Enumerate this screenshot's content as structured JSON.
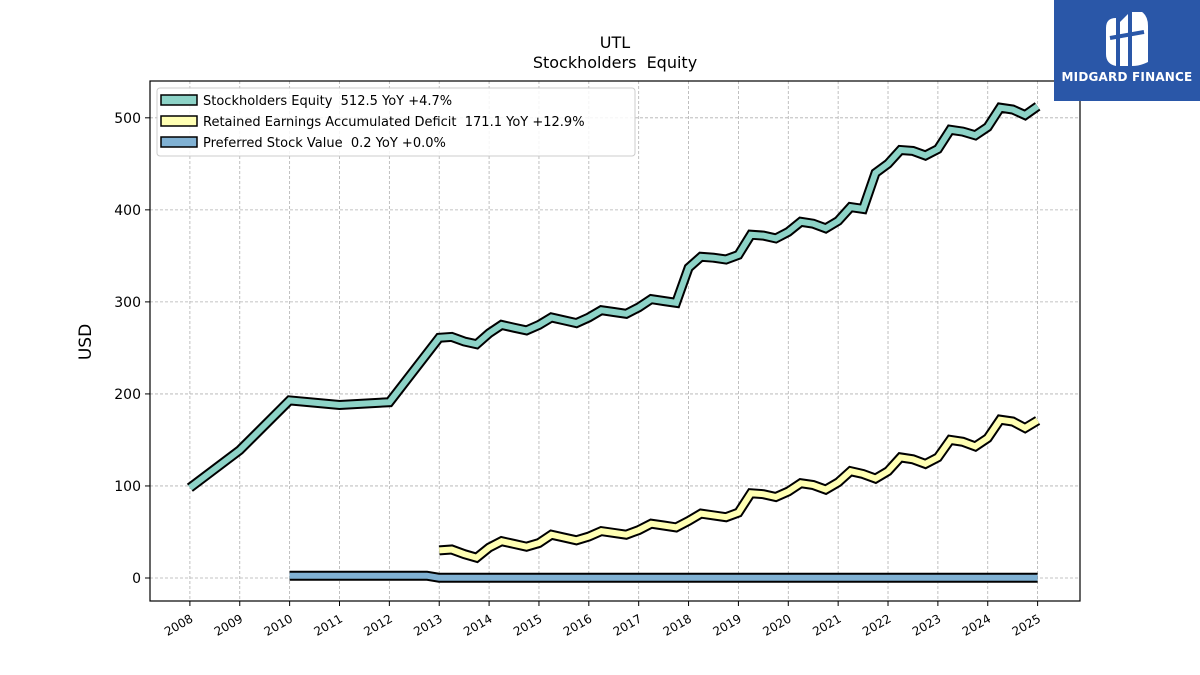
{
  "chart_data": {
    "type": "line",
    "title": "UTL",
    "subtitle": "Stockholders  Equity",
    "ylabel": "USD",
    "xlabel": "",
    "ylim": [
      -25,
      540
    ],
    "xlim": [
      2007.2,
      2025.85
    ],
    "x_ticks": [
      2008,
      2009,
      2010,
      2011,
      2012,
      2013,
      2014,
      2015,
      2016,
      2017,
      2018,
      2019,
      2020,
      2021,
      2022,
      2023,
      2024,
      2025
    ],
    "x_tick_labels": [
      "2008",
      "2009",
      "2010",
      "2011",
      "2012",
      "2013",
      "2014",
      "2015",
      "2016",
      "2017",
      "2018",
      "2019",
      "2020",
      "2021",
      "2022",
      "2023",
      "2024",
      "2025"
    ],
    "y_ticks": [
      0,
      100,
      200,
      300,
      400,
      500
    ],
    "y_tick_labels": [
      "0",
      "100",
      "200",
      "300",
      "400",
      "500"
    ],
    "grid": true,
    "legend_position": "top-left",
    "series": [
      {
        "name": "Stockholders Equity  512.5 YoY +4.7%",
        "color": "#8dd3c7",
        "x": [
          2008.0,
          2009.0,
          2010.0,
          2011.0,
          2012.0,
          2013.0,
          2013.25,
          2013.5,
          2013.75,
          2014.0,
          2014.25,
          2014.5,
          2014.75,
          2015.0,
          2015.25,
          2015.5,
          2015.75,
          2016.0,
          2016.25,
          2016.5,
          2016.75,
          2017.0,
          2017.25,
          2017.5,
          2017.75,
          2018.0,
          2018.25,
          2018.5,
          2018.75,
          2019.0,
          2019.25,
          2019.5,
          2019.75,
          2020.0,
          2020.25,
          2020.5,
          2020.75,
          2021.0,
          2021.25,
          2021.5,
          2021.75,
          2022.0,
          2022.25,
          2022.5,
          2022.75,
          2023.0,
          2023.25,
          2023.5,
          2023.75,
          2024.0,
          2024.25,
          2024.5,
          2024.75,
          2025.0
        ],
        "values": [
          98,
          139,
          193,
          188,
          191,
          261,
          262,
          257,
          254,
          266,
          275,
          272,
          269,
          275,
          283,
          280,
          277,
          283,
          291,
          289,
          287,
          294,
          303,
          301,
          299,
          337,
          349,
          348,
          346,
          351,
          373,
          372,
          369,
          376,
          387,
          385,
          380,
          388,
          403,
          401,
          440,
          450,
          465,
          464,
          459,
          466,
          487,
          485,
          481,
          490,
          511,
          509,
          503,
          512.5
        ]
      },
      {
        "name": "Retained Earnings Accumulated Deficit  171.1 YoY +12.9%",
        "color": "#ffffb3",
        "x": [
          2013.0,
          2013.25,
          2013.5,
          2013.75,
          2014.0,
          2014.25,
          2014.5,
          2014.75,
          2015.0,
          2015.25,
          2015.5,
          2015.75,
          2016.0,
          2016.25,
          2016.5,
          2016.75,
          2017.0,
          2017.25,
          2017.5,
          2017.75,
          2018.0,
          2018.25,
          2018.5,
          2018.75,
          2019.0,
          2019.25,
          2019.5,
          2019.75,
          2020.0,
          2020.25,
          2020.5,
          2020.75,
          2021.0,
          2021.25,
          2021.5,
          2021.75,
          2022.0,
          2022.25,
          2022.5,
          2022.75,
          2023.0,
          2023.25,
          2023.5,
          2023.75,
          2024.0,
          2024.25,
          2024.5,
          2024.75,
          2025.0
        ],
        "values": [
          30,
          31,
          26,
          22,
          33,
          40,
          37,
          34,
          38,
          47,
          44,
          41,
          45,
          51,
          49,
          47,
          52,
          59,
          57,
          55,
          62,
          70,
          68,
          66,
          71,
          92,
          91,
          88,
          94,
          103,
          101,
          96,
          104,
          116,
          113,
          108,
          116,
          131,
          129,
          124,
          131,
          150,
          148,
          143,
          152,
          172,
          170,
          163,
          171.1
        ]
      },
      {
        "name": "Preferred Stock Value  0.2 YoY +0.0%",
        "color": "#80b1d3",
        "x": [
          2010.0,
          2012.75,
          2013.0,
          2025.0
        ],
        "values": [
          2.5,
          2.5,
          0.2,
          0.2
        ]
      }
    ]
  },
  "logo": {
    "text": "MIDGARD FINANCE",
    "background": "#2a57a8"
  }
}
